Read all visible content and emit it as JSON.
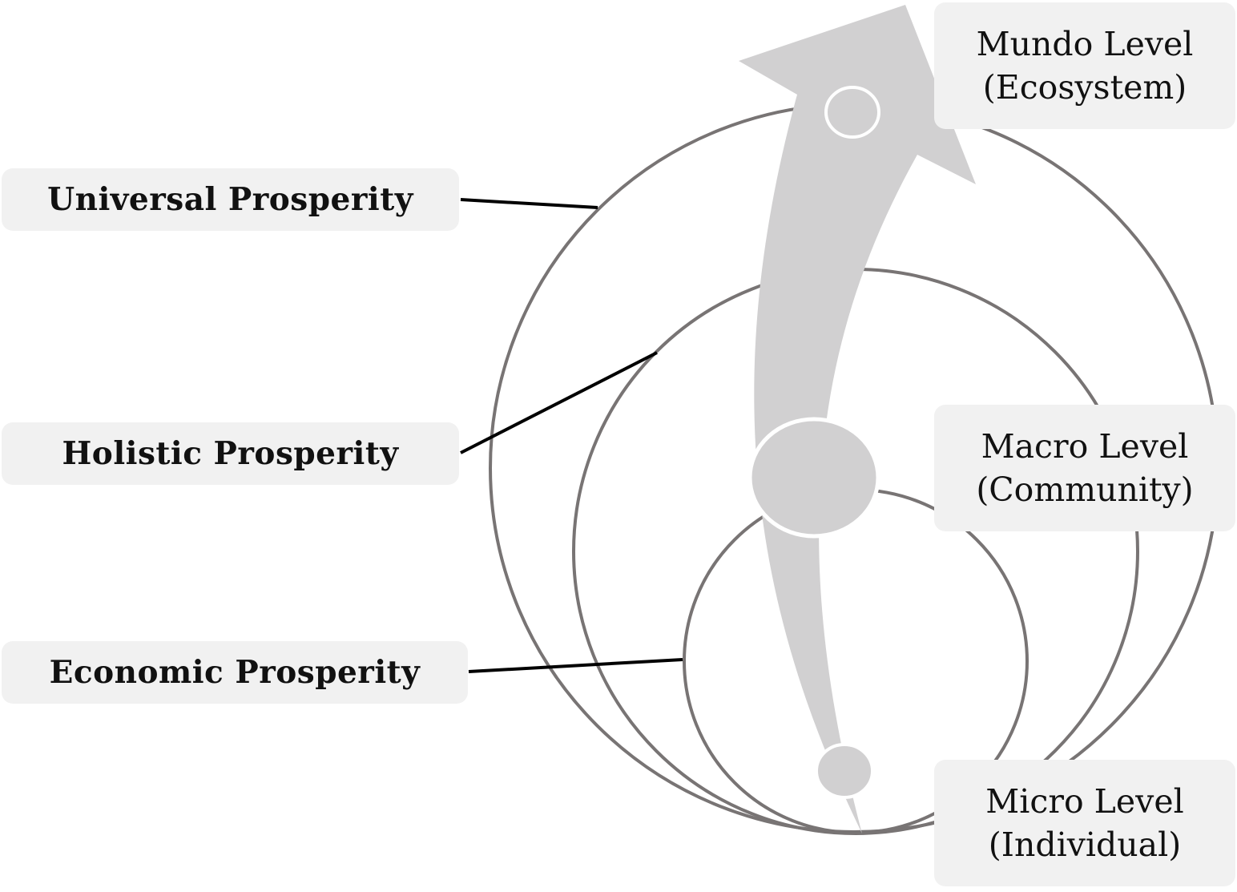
{
  "colors": {
    "circle_stroke": "#787474",
    "arrow_fill": "#d1d0d1",
    "connector": "#000000",
    "label_box": "#f1f1f1",
    "text": "#111111"
  },
  "prosperity_labels": {
    "universal": "Universal Prosperity",
    "holistic": "Holistic Prosperity",
    "economic": "Economic Prosperity"
  },
  "levels": {
    "mundo": {
      "name": "Mundo Level",
      "scope": "(Ecosystem)"
    },
    "macro": {
      "name": "Macro Level",
      "scope": "(Community)"
    },
    "micro": {
      "name": "Micro Level",
      "scope": "(Individual)"
    }
  }
}
